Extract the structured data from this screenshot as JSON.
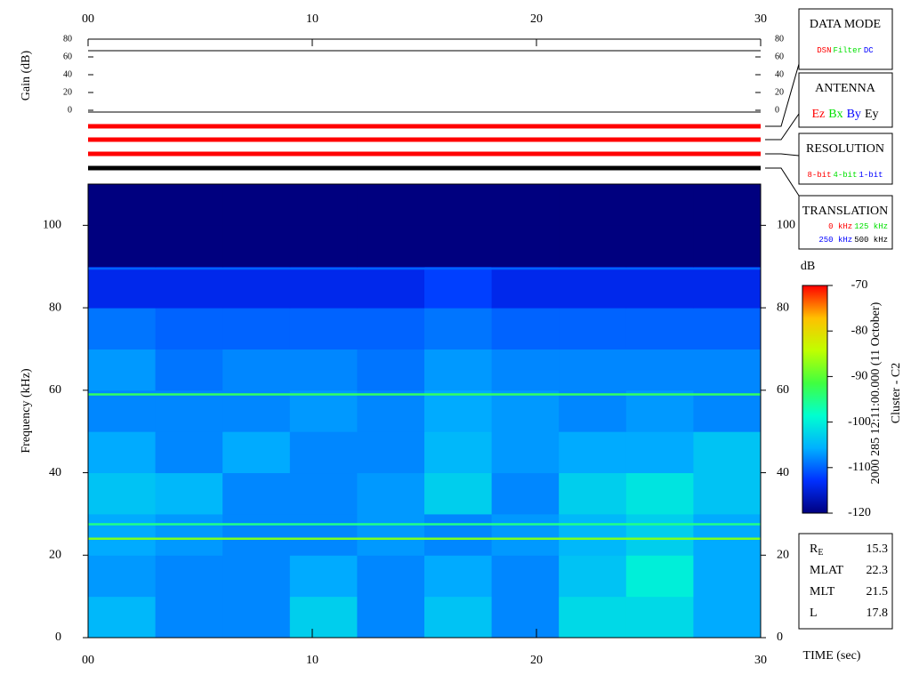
{
  "chart_data": [
    {
      "type": "line",
      "ylabel": "Gain (dB)",
      "xlim": [
        0,
        30
      ],
      "xticks": [
        {
          "value": 0,
          "label": "00"
        },
        10,
        20,
        30
      ],
      "ylim": [
        0,
        80
      ],
      "yticks": [
        0,
        20,
        40,
        60,
        80
      ],
      "x": [
        0,
        30
      ],
      "values": [
        67,
        67
      ],
      "color": "#000000"
    },
    {
      "type": "heatmap",
      "ylabel": "Frequency (kHz)",
      "xlabel": "TIME (sec)",
      "xlim": [
        0,
        30
      ],
      "xticks": [
        {
          "value": 0,
          "label": "00"
        },
        10,
        20,
        30
      ],
      "ylim": [
        0,
        110
      ],
      "yticks": [
        0,
        20,
        40,
        60,
        80,
        100
      ],
      "zlabel": "dB",
      "zlim": [
        -120,
        -70
      ],
      "zticks": [
        -120,
        -110,
        -100,
        -90,
        -80,
        -70
      ],
      "colormap": [
        "#00007f",
        "#0030ff",
        "#00b0ff",
        "#00ffd0",
        "#40ff40",
        "#c0ff00",
        "#ffc000",
        "#ff0000"
      ],
      "x_edges": [
        0,
        3,
        6,
        9,
        12,
        15,
        18,
        21,
        24,
        27,
        30
      ],
      "y_edges": [
        0,
        10,
        20,
        30,
        40,
        50,
        60,
        70,
        80,
        90,
        100,
        110
      ],
      "z": [
        [
          -105,
          -108,
          -108,
          -103,
          -108,
          -104,
          -108,
          -102,
          -102,
          -106
        ],
        [
          -107,
          -108,
          -108,
          -106,
          -108,
          -106,
          -108,
          -104,
          -100,
          -106
        ],
        [
          -106,
          -107,
          -108,
          -108,
          -107,
          -108,
          -107,
          -105,
          -103,
          -106
        ],
        [
          -104,
          -105,
          -108,
          -108,
          -107,
          -103,
          -108,
          -103,
          -101,
          -104
        ],
        [
          -106,
          -108,
          -106,
          -108,
          -108,
          -105,
          -107,
          -106,
          -106,
          -104
        ],
        [
          -108,
          -108,
          -108,
          -107,
          -108,
          -106,
          -107,
          -108,
          -107,
          -108
        ],
        [
          -107,
          -109,
          -108,
          -108,
          -109,
          -107,
          -108,
          -108,
          -108,
          -108
        ],
        [
          -109,
          -110,
          -110,
          -110,
          -110,
          -109,
          -110,
          -110,
          -110,
          -110
        ],
        [
          -114,
          -114,
          -114,
          -114,
          -114,
          -112,
          -114,
          -114,
          -114,
          -114
        ],
        [
          -120,
          -120,
          -120,
          -120,
          -120,
          -120,
          -120,
          -120,
          -120,
          -120
        ],
        [
          -120,
          -120,
          -120,
          -120,
          -120,
          -120,
          -120,
          -120,
          -120,
          -120
        ]
      ],
      "lines": [
        {
          "freq": 89.5,
          "db": -110
        },
        {
          "freq": 59,
          "db": -93
        },
        {
          "freq": 27.5,
          "db": -95
        },
        {
          "freq": 24,
          "db": -88
        }
      ]
    }
  ],
  "status_bars": [
    "#ff0000",
    "#ff0000",
    "#ff0000",
    "#000000"
  ],
  "legend_boxes": [
    {
      "title": "DATA MODE",
      "rows": [
        [
          {
            "text": "DSN",
            "color": "#ff0000"
          },
          {
            "text": "Filter",
            "color": "#00e000"
          },
          {
            "text": "DC",
            "color": "#0000ff"
          }
        ]
      ]
    },
    {
      "title": "ANTENNA",
      "rows": [
        [
          {
            "text": "Ez",
            "color": "#ff0000"
          },
          {
            "text": "Bx",
            "color": "#00e000"
          },
          {
            "text": "By",
            "color": "#0000ff"
          },
          {
            "text": "Ey",
            "color": "#000000"
          }
        ]
      ]
    },
    {
      "title": "RESOLUTION",
      "rows": [
        [
          {
            "text": "8-bit",
            "color": "#ff0000"
          },
          {
            "text": "4-bit",
            "color": "#00e000"
          },
          {
            "text": "1-bit",
            "color": "#0000ff"
          }
        ]
      ]
    },
    {
      "title": "TRANSLATION",
      "rows": [
        [
          {
            "text": "0 kHz",
            "color": "#ff0000"
          },
          {
            "text": "125 kHz",
            "color": "#00e000"
          }
        ],
        [
          {
            "text": "250 kHz",
            "color": "#0000ff"
          },
          {
            "text": "500 kHz",
            "color": "#000000"
          }
        ]
      ]
    }
  ],
  "annotations": {
    "date": "2000 285 12:11:00.000 (11 October)",
    "spacecraft": "Cluster - C2"
  },
  "ephemeris": [
    {
      "label": "R",
      "sub": "E",
      "value": 15.3
    },
    {
      "label": "MLAT",
      "value": 22.3
    },
    {
      "label": "MLT",
      "value": 21.5
    },
    {
      "label": "L",
      "value": 17.8
    }
  ]
}
